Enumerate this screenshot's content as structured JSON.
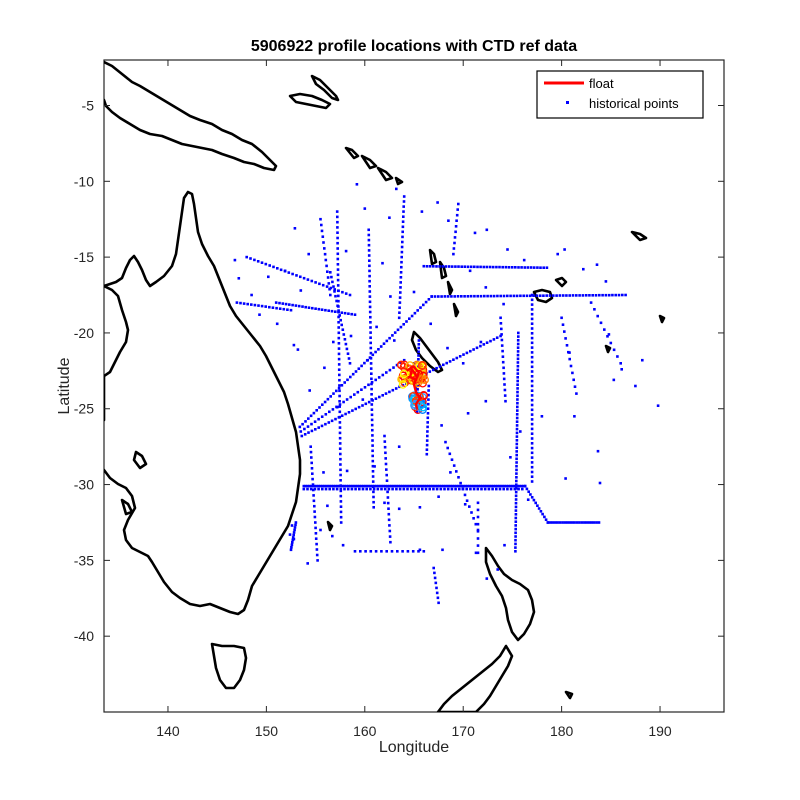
{
  "chart_data": {
    "type": "scatter",
    "title": "5906922 profile locations with CTD ref data",
    "xlabel": "Longitude",
    "ylabel": "Latitude",
    "xlim": [
      133.5,
      196.5
    ],
    "ylim": [
      -45,
      -2
    ],
    "xticks": [
      140,
      150,
      160,
      170,
      180,
      190
    ],
    "yticks": [
      -5,
      -10,
      -15,
      -20,
      -25,
      -30,
      -35,
      -40
    ],
    "grid": false,
    "legend": {
      "placement": "top-right",
      "entries": [
        {
          "label": "float",
          "color": "#ff0000",
          "marker": "line"
        },
        {
          "label": "historical points",
          "color": "#0000ff",
          "marker": "dot"
        }
      ]
    },
    "series": [
      {
        "name": "historical points",
        "color": "#0000ff",
        "tracks": [
          {
            "from": [
              153.8,
              -30.1
            ],
            "to": [
              176.3,
              -30.1
            ],
            "n": 120
          },
          {
            "from": [
              153.8,
              -30.3
            ],
            "to": [
              176.0,
              -30.3
            ],
            "n": 60
          },
          {
            "from": [
              176.3,
              -30.1
            ],
            "to": [
              178.6,
              -32.5
            ],
            "n": 14
          },
          {
            "from": [
              178.6,
              -32.5
            ],
            "to": [
              183.8,
              -32.5
            ],
            "n": 22
          },
          {
            "from": [
              153.4,
              -26.2
            ],
            "to": [
              166.8,
              -17.6
            ],
            "n": 48
          },
          {
            "from": [
              153.6,
              -26.8
            ],
            "to": [
              173.8,
              -20.2
            ],
            "n": 60
          },
          {
            "from": [
              153.5,
              -26.5
            ],
            "to": [
              164.0,
              -21.8
            ],
            "n": 30
          },
          {
            "from": [
              166.8,
              -17.6
            ],
            "to": [
              186.5,
              -17.5
            ],
            "n": 60
          },
          {
            "from": [
              166.0,
              -15.6
            ],
            "to": [
              178.5,
              -15.7
            ],
            "n": 40
          },
          {
            "from": [
              175.6,
              -20.0
            ],
            "to": [
              175.3,
              -34.4
            ],
            "n": 60
          },
          {
            "from": [
              177.0,
              -17.5
            ],
            "to": [
              177.0,
              -29.8
            ],
            "n": 40
          },
          {
            "from": [
              160.4,
              -13.2
            ],
            "to": [
              160.9,
              -31.5
            ],
            "n": 55
          },
          {
            "from": [
              157.2,
              -12.0
            ],
            "to": [
              157.6,
              -32.5
            ],
            "n": 60
          },
          {
            "from": [
              165.5,
              -20.5
            ],
            "to": [
              165.3,
              -25.2
            ],
            "n": 20
          },
          {
            "from": [
              165.0,
              -22.0
            ],
            "to": [
              165.3,
              -25.0
            ],
            "n": 14
          },
          {
            "from": [
              166.5,
              -23.5
            ],
            "to": [
              166.3,
              -28.0
            ],
            "n": 16
          },
          {
            "from": [
              153.0,
              -32.5
            ],
            "to": [
              152.5,
              -34.3
            ],
            "n": 12
          },
          {
            "from": [
              154.5,
              -27.5
            ],
            "to": [
              155.2,
              -35.0
            ],
            "n": 22
          },
          {
            "from": [
              156.5,
              -16.0
            ],
            "to": [
              158.5,
              -22.0
            ],
            "n": 20
          },
          {
            "from": [
              151.0,
              -18.0
            ],
            "to": [
              159.0,
              -18.8
            ],
            "n": 25
          },
          {
            "from": [
              155.5,
              -12.5
            ],
            "to": [
              156.5,
              -17.5
            ],
            "n": 14
          },
          {
            "from": [
              164.0,
              -11.0
            ],
            "to": [
              163.5,
              -19.0
            ],
            "n": 25
          },
          {
            "from": [
              148.0,
              -15.0
            ],
            "to": [
              158.5,
              -17.5
            ],
            "n": 28
          },
          {
            "from": [
              147.0,
              -18.0
            ],
            "to": [
              152.5,
              -18.5
            ],
            "n": 16
          },
          {
            "from": [
              162.0,
              -26.8
            ],
            "to": [
              162.6,
              -33.8
            ],
            "n": 20
          },
          {
            "from": [
              168.2,
              -27.2
            ],
            "to": [
              171.5,
              -33.0
            ],
            "n": 16
          },
          {
            "from": [
              173.8,
              -19.0
            ],
            "to": [
              174.3,
              -24.5
            ],
            "n": 16
          },
          {
            "from": [
              180.0,
              -19.0
            ],
            "to": [
              181.5,
              -24.0
            ],
            "n": 12
          },
          {
            "from": [
              183.0,
              -18.0
            ],
            "to": [
              186.0,
              -22.0
            ],
            "n": 10
          },
          {
            "from": [
              159.0,
              -34.4
            ],
            "to": [
              166.0,
              -34.4
            ],
            "n": 14
          },
          {
            "from": [
              171.5,
              -31.2
            ],
            "to": [
              171.5,
              -34.5
            ],
            "n": 8
          },
          {
            "from": [
              167.0,
              -35.5
            ],
            "to": [
              167.5,
              -37.8
            ],
            "n": 8
          },
          {
            "from": [
              169.5,
              -11.5
            ],
            "to": [
              169.0,
              -14.8
            ],
            "n": 10
          }
        ],
        "points": [
          [
            159.2,
            -10.2
          ],
          [
            160.0,
            -11.8
          ],
          [
            162.5,
            -12.4
          ],
          [
            163.2,
            -10.5
          ],
          [
            165.8,
            -12.0
          ],
          [
            167.4,
            -11.4
          ],
          [
            168.5,
            -12.6
          ],
          [
            171.2,
            -13.4
          ],
          [
            172.4,
            -13.2
          ],
          [
            174.5,
            -14.5
          ],
          [
            176.2,
            -15.2
          ],
          [
            179.6,
            -14.8
          ],
          [
            180.3,
            -14.5
          ],
          [
            182.2,
            -15.8
          ],
          [
            183.6,
            -15.5
          ],
          [
            148.5,
            -17.5
          ],
          [
            150.2,
            -16.3
          ],
          [
            152.8,
            -20.8
          ],
          [
            146.8,
            -15.2
          ],
          [
            184.5,
            -16.6
          ],
          [
            188.2,
            -21.8
          ],
          [
            187.5,
            -23.5
          ],
          [
            186.1,
            -22.4
          ],
          [
            185.3,
            -23.1
          ],
          [
            189.8,
            -24.8
          ],
          [
            183.7,
            -27.8
          ],
          [
            183.9,
            -29.9
          ],
          [
            180.4,
            -29.6
          ],
          [
            175.8,
            -26.5
          ],
          [
            172.3,
            -24.5
          ],
          [
            170.5,
            -25.3
          ],
          [
            167.8,
            -26.1
          ],
          [
            168.7,
            -29.2
          ],
          [
            163.5,
            -27.5
          ],
          [
            161.0,
            -28.8
          ],
          [
            163.5,
            -31.6
          ],
          [
            162.0,
            -31.2
          ],
          [
            165.6,
            -31.5
          ],
          [
            167.5,
            -30.8
          ],
          [
            170.2,
            -31.3
          ],
          [
            158.2,
            -29.1
          ],
          [
            155.8,
            -29.2
          ],
          [
            156.2,
            -31.4
          ],
          [
            155.5,
            -33.0
          ],
          [
            156.7,
            -33.4
          ],
          [
            157.8,
            -34.0
          ],
          [
            154.2,
            -35.2
          ],
          [
            152.4,
            -33.3
          ],
          [
            152.8,
            -33.6
          ],
          [
            152.6,
            -32.7
          ],
          [
            165.6,
            -34.3
          ],
          [
            167.9,
            -34.3
          ],
          [
            171.3,
            -34.5
          ],
          [
            174.2,
            -34.0
          ],
          [
            176.6,
            -31.0
          ],
          [
            173.5,
            -35.6
          ],
          [
            172.4,
            -36.2
          ],
          [
            174.8,
            -28.2
          ],
          [
            178.0,
            -25.5
          ],
          [
            184.8,
            -20.1
          ],
          [
            180.8,
            -21.3
          ],
          [
            181.3,
            -25.5
          ],
          [
            159.8,
            -24.4
          ],
          [
            157.2,
            -24.9
          ],
          [
            155.9,
            -22.3
          ],
          [
            154.4,
            -23.8
          ],
          [
            153.2,
            -21.1
          ],
          [
            151.1,
            -19.4
          ],
          [
            149.3,
            -18.8
          ],
          [
            147.2,
            -16.4
          ],
          [
            152.9,
            -13.1
          ],
          [
            151.9,
            -15.9
          ],
          [
            153.5,
            -17.2
          ],
          [
            154.3,
            -14.8
          ],
          [
            158.1,
            -14.6
          ],
          [
            161.8,
            -15.4
          ],
          [
            162.6,
            -17.6
          ],
          [
            165.0,
            -17.3
          ],
          [
            170.7,
            -15.9
          ],
          [
            171.8,
            -20.6
          ],
          [
            170.0,
            -22.0
          ],
          [
            168.4,
            -21.0
          ],
          [
            166.7,
            -19.4
          ],
          [
            172.3,
            -17.0
          ],
          [
            174.1,
            -18.1
          ],
          [
            163.0,
            -20.5
          ],
          [
            161.2,
            -19.6
          ],
          [
            160.3,
            -21.8
          ],
          [
            158.6,
            -20.2
          ],
          [
            156.8,
            -20.6
          ]
        ]
      },
      {
        "name": "float",
        "color": "#ff0000",
        "clusters": [
          {
            "center": [
              164.9,
              -22.7
            ],
            "spread": [
              1.2,
              0.7
            ],
            "colors": [
              "#ff0000",
              "#ff4000",
              "#ff8000",
              "#ffbf00",
              "#ffff00",
              "#ff2000"
            ],
            "n": 60
          },
          {
            "center": [
              165.4,
              -24.6
            ],
            "spread": [
              0.6,
              0.5
            ],
            "colors": [
              "#00bfff",
              "#0080ff",
              "#3399ff",
              "#ff0000",
              "#ff4000"
            ],
            "n": 26
          }
        ],
        "track": [
          [
            164.3,
            -22.5
          ],
          [
            164.9,
            -22.2
          ],
          [
            165.5,
            -22.6
          ],
          [
            165.2,
            -23.1
          ],
          [
            164.6,
            -22.9
          ],
          [
            164.8,
            -22.4
          ],
          [
            165.3,
            -22.9
          ],
          [
            165.0,
            -23.4
          ],
          [
            165.2,
            -23.9
          ],
          [
            165.6,
            -24.3
          ],
          [
            165.2,
            -24.7
          ],
          [
            165.3,
            -25.0
          ]
        ]
      }
    ]
  }
}
